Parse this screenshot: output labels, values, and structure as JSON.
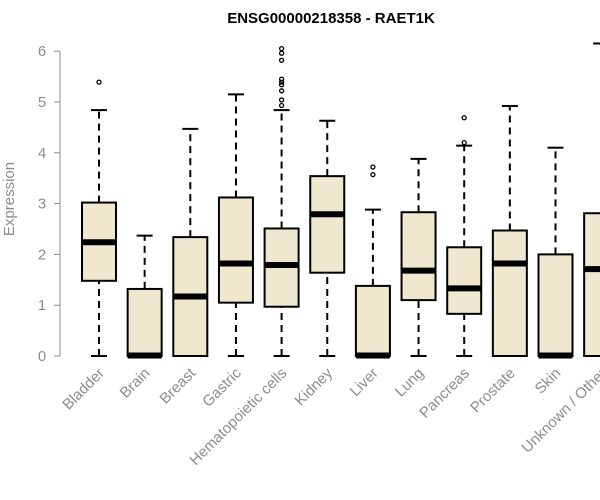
{
  "chart_data": {
    "type": "box",
    "title": "ENSG00000218358 - RAET1K",
    "xlabel": "",
    "ylabel": "Expression",
    "ylim": [
      0,
      6.2
    ],
    "yticks": [
      0,
      1,
      2,
      3,
      4,
      5,
      6
    ],
    "box_fill": "#efe8cf",
    "stroke": "#000000",
    "categories": [
      "Bladder",
      "Brain",
      "Breast",
      "Gastric",
      "Hematopoietic cells",
      "Kidney",
      "Liver",
      "Lung",
      "Pancreas",
      "Prostate",
      "Skin",
      "Unknown / Other"
    ],
    "series": [
      {
        "whisker_low": 0,
        "q1": 1.48,
        "median": 2.24,
        "q3": 3.02,
        "whisker_high": 4.84,
        "outliers": [
          5.39
        ]
      },
      {
        "whisker_low": 0,
        "q1": 0,
        "median": 0.01,
        "q3": 1.32,
        "whisker_high": 2.37,
        "outliers": []
      },
      {
        "whisker_low": 0,
        "q1": 0,
        "median": 1.17,
        "q3": 2.34,
        "whisker_high": 4.47,
        "outliers": []
      },
      {
        "whisker_low": 0,
        "q1": 1.05,
        "median": 1.82,
        "q3": 3.12,
        "whisker_high": 5.15,
        "outliers": []
      },
      {
        "whisker_low": 0,
        "q1": 0.97,
        "median": 1.79,
        "q3": 2.51,
        "whisker_high": 4.84,
        "outliers": [
          4.93,
          5.04,
          5.22,
          5.34,
          5.39,
          5.45,
          5.82,
          5.96,
          6.05
        ]
      },
      {
        "whisker_low": 0,
        "q1": 1.64,
        "median": 2.79,
        "q3": 3.54,
        "whisker_high": 4.63,
        "outliers": []
      },
      {
        "whisker_low": 0,
        "q1": 0,
        "median": 0.01,
        "q3": 1.38,
        "whisker_high": 2.88,
        "outliers": [
          3.57,
          3.72
        ]
      },
      {
        "whisker_low": 0,
        "q1": 1.1,
        "median": 1.68,
        "q3": 2.83,
        "whisker_high": 3.88,
        "outliers": []
      },
      {
        "whisker_low": 0,
        "q1": 0.83,
        "median": 1.33,
        "q3": 2.14,
        "whisker_high": 4.14,
        "outliers": [
          4.2,
          4.69
        ]
      },
      {
        "whisker_low": 0,
        "q1": 0,
        "median": 1.82,
        "q3": 2.47,
        "whisker_high": 4.92,
        "outliers": []
      },
      {
        "whisker_low": 0,
        "q1": 0,
        "median": 0.01,
        "q3": 2.0,
        "whisker_high": 4.1,
        "outliers": []
      },
      {
        "whisker_low": 0,
        "q1": 0,
        "median": 1.71,
        "q3": 2.81,
        "whisker_high": 6.15,
        "outliers": []
      }
    ]
  }
}
